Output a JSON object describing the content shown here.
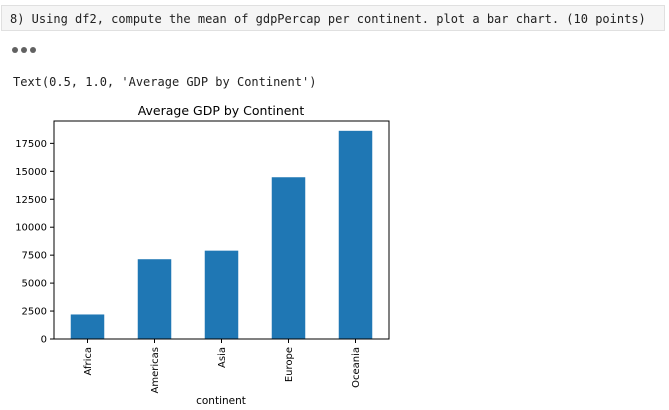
{
  "cell": {
    "code": "8) Using df2, compute the mean of gdpPercap per continent. plot a bar chart. (10 points)"
  },
  "output": {
    "text_repr": "Text(0.5, 1.0, 'Average GDP by Continent')"
  },
  "chart_data": {
    "type": "bar",
    "title": "Average GDP by Continent",
    "xlabel": "continent",
    "ylabel": "",
    "categories": [
      "Africa",
      "Americas",
      "Asia",
      "Europe",
      "Oceania"
    ],
    "values": [
      2194,
      7136,
      7902,
      14469,
      18622
    ],
    "ylim": [
      0,
      19500
    ],
    "yticks": [
      0,
      2500,
      5000,
      7500,
      10000,
      12500,
      15000,
      17500
    ],
    "bar_color": "#1f77b4",
    "grid": false
  }
}
